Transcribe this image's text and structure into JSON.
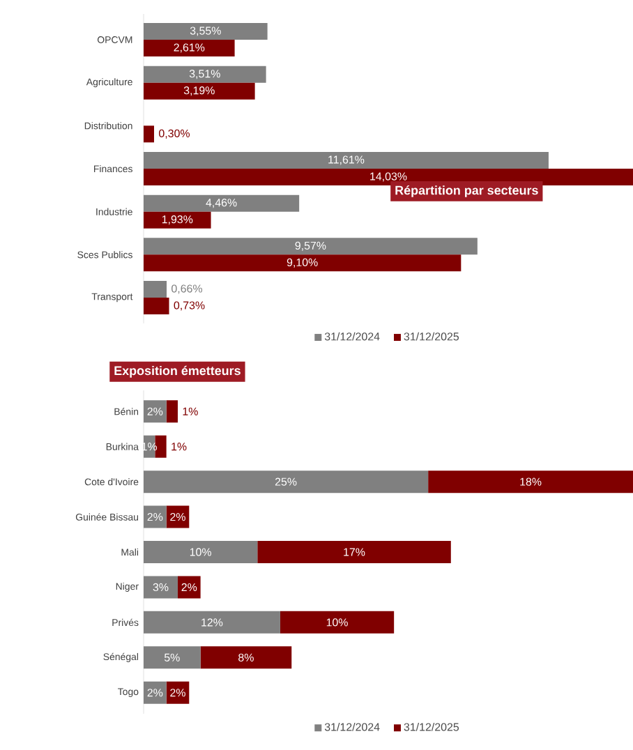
{
  "chart_data": [
    {
      "type": "bar",
      "orientation": "horizontal",
      "title": "Répartition par secteurs",
      "categories": [
        "OPCVM",
        "Agriculture",
        "Distribution",
        "Finances",
        "Industrie",
        "Sces Publics",
        "Transport"
      ],
      "series": [
        {
          "name": "31/12/2024",
          "color": "#808080",
          "values": [
            3.55,
            3.51,
            null,
            11.61,
            4.46,
            9.57,
            0.66
          ],
          "value_labels": [
            "3,55%",
            "3,51%",
            null,
            "11,61%",
            "4,46%",
            "9,57%",
            "0,66%"
          ]
        },
        {
          "name": "31/12/2025",
          "color": "#800000",
          "values": [
            2.61,
            3.19,
            0.3,
            14.03,
            1.93,
            9.1,
            0.73
          ],
          "value_labels": [
            "2,61%",
            "3,19%",
            "0,30%",
            "14,03%",
            "1,93%",
            "9,10%",
            "0,73%"
          ]
        }
      ],
      "legend": "bottom"
    },
    {
      "type": "bar",
      "orientation": "horizontal",
      "stacked": true,
      "title": "Exposition émetteurs",
      "categories": [
        "Bénin",
        "Burkina",
        "Cote d'Ivoire",
        "Guinée Bissau",
        "Mali",
        "Niger",
        "Privés",
        "Sénégal",
        "Togo"
      ],
      "series": [
        {
          "name": "31/12/2024",
          "color": "#808080",
          "values": [
            2,
            1,
            25,
            2,
            10,
            3,
            12,
            5,
            2
          ],
          "value_labels": [
            "2%",
            "1%",
            "25%",
            "2%",
            "10%",
            "3%",
            "12%",
            "5%",
            "2%"
          ]
        },
        {
          "name": "31/12/2025",
          "color": "#800000",
          "values": [
            1,
            1,
            18,
            2,
            17,
            2,
            10,
            8,
            2
          ],
          "value_labels": [
            "1%",
            "1%",
            "18%",
            "2%",
            "17%",
            "2%",
            "10%",
            "8%",
            "2%"
          ]
        }
      ],
      "legend": "bottom"
    }
  ]
}
